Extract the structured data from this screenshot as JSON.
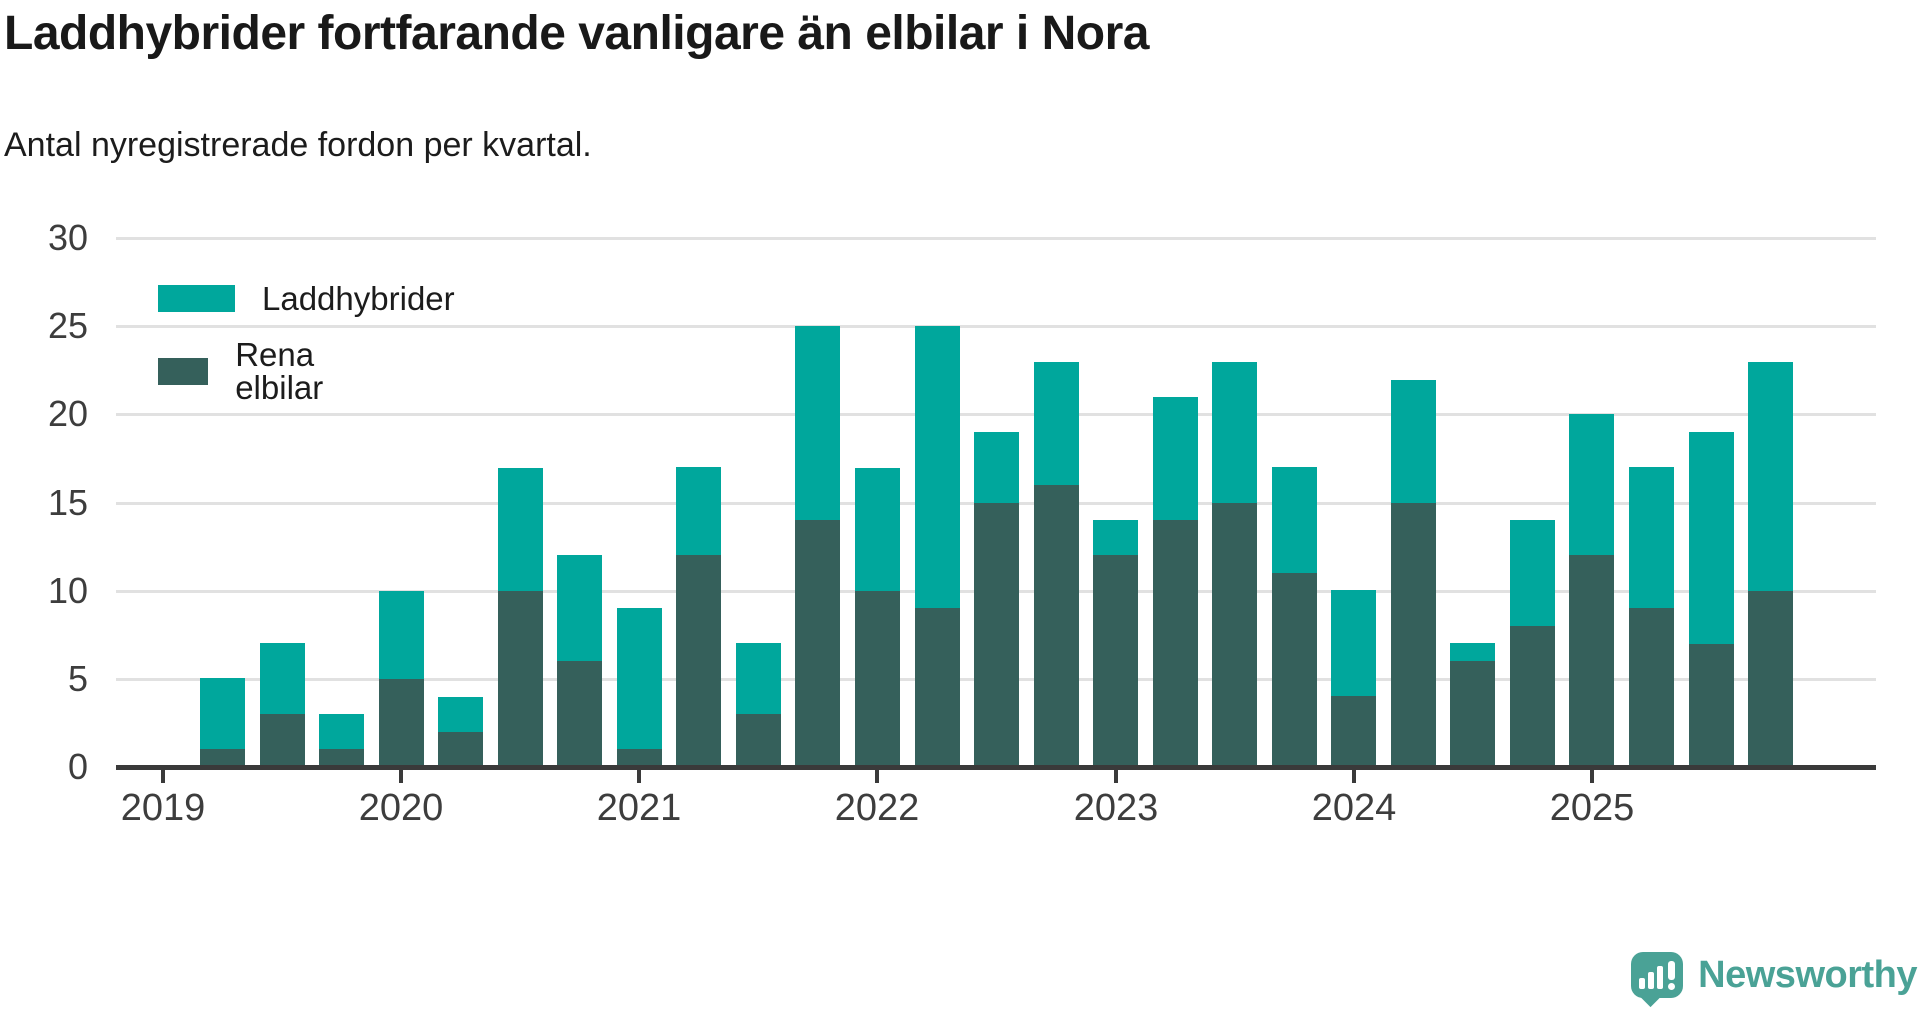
{
  "title": "Laddhybrider fortfarande vanligare än elbilar i Nora",
  "subtitle": "Antal nyregistrerade fordon per kvartal.",
  "legend": {
    "items": [
      {
        "label": "Laddhybrider",
        "color": "#00a79c"
      },
      {
        "label": "Rena elbilar",
        "color": "#35605b"
      }
    ]
  },
  "branding": {
    "name": "Newsworthy",
    "color": "#4aa296"
  },
  "colors": {
    "laddhybrider": "#00a79c",
    "rena_elbilar": "#35605b",
    "gridline": "#e1e1e1",
    "axis": "#3a3a3a",
    "text": "#1c1c1c"
  },
  "chart_data": {
    "type": "bar",
    "stacked": true,
    "title": "Laddhybrider fortfarande vanligare än elbilar i Nora",
    "subtitle": "Antal nyregistrerade fordon per kvartal.",
    "grid": true,
    "legend_position": "top-left-inside",
    "ylim": [
      0,
      30
    ],
    "y_ticks": [
      0,
      5,
      10,
      15,
      20,
      25,
      30
    ],
    "x_tick_labels": [
      "2019",
      "2020",
      "2021",
      "2022",
      "2023",
      "2024",
      "2025"
    ],
    "categories": [
      "2019 Q2",
      "2019 Q3",
      "2019 Q4",
      "2020 Q1",
      "2020 Q2",
      "2020 Q3",
      "2020 Q4",
      "2021 Q1",
      "2021 Q2",
      "2021 Q3",
      "2021 Q4",
      "2022 Q1",
      "2022 Q2",
      "2022 Q3",
      "2022 Q4",
      "2023 Q1",
      "2023 Q2",
      "2023 Q3",
      "2023 Q4",
      "2024 Q1",
      "2024 Q2",
      "2024 Q3",
      "2024 Q4",
      "2025 Q1",
      "2025 Q2",
      "2025 Q3",
      "2025 Q4"
    ],
    "series": [
      {
        "name": "Laddhybrider",
        "color": "#00a79c",
        "values": [
          4,
          4,
          2,
          5,
          2,
          7,
          6,
          8,
          5,
          4,
          11,
          7,
          16,
          4,
          7,
          2,
          7,
          8,
          6,
          6,
          7,
          1,
          6,
          8,
          8,
          12,
          13
        ]
      },
      {
        "name": "Rena elbilar",
        "color": "#35605b",
        "values": [
          1,
          3,
          1,
          5,
          2,
          10,
          6,
          1,
          12,
          3,
          14,
          10,
          9,
          15,
          16,
          12,
          14,
          15,
          11,
          4,
          15,
          6,
          8,
          12,
          9,
          7,
          10
        ]
      }
    ],
    "stack_totals": [
      5,
      7,
      3,
      10,
      4,
      17,
      12,
      9,
      17,
      7,
      25,
      17,
      25,
      19,
      23,
      14,
      21,
      23,
      17,
      10,
      22,
      7,
      14,
      20,
      17,
      19,
      23
    ]
  }
}
